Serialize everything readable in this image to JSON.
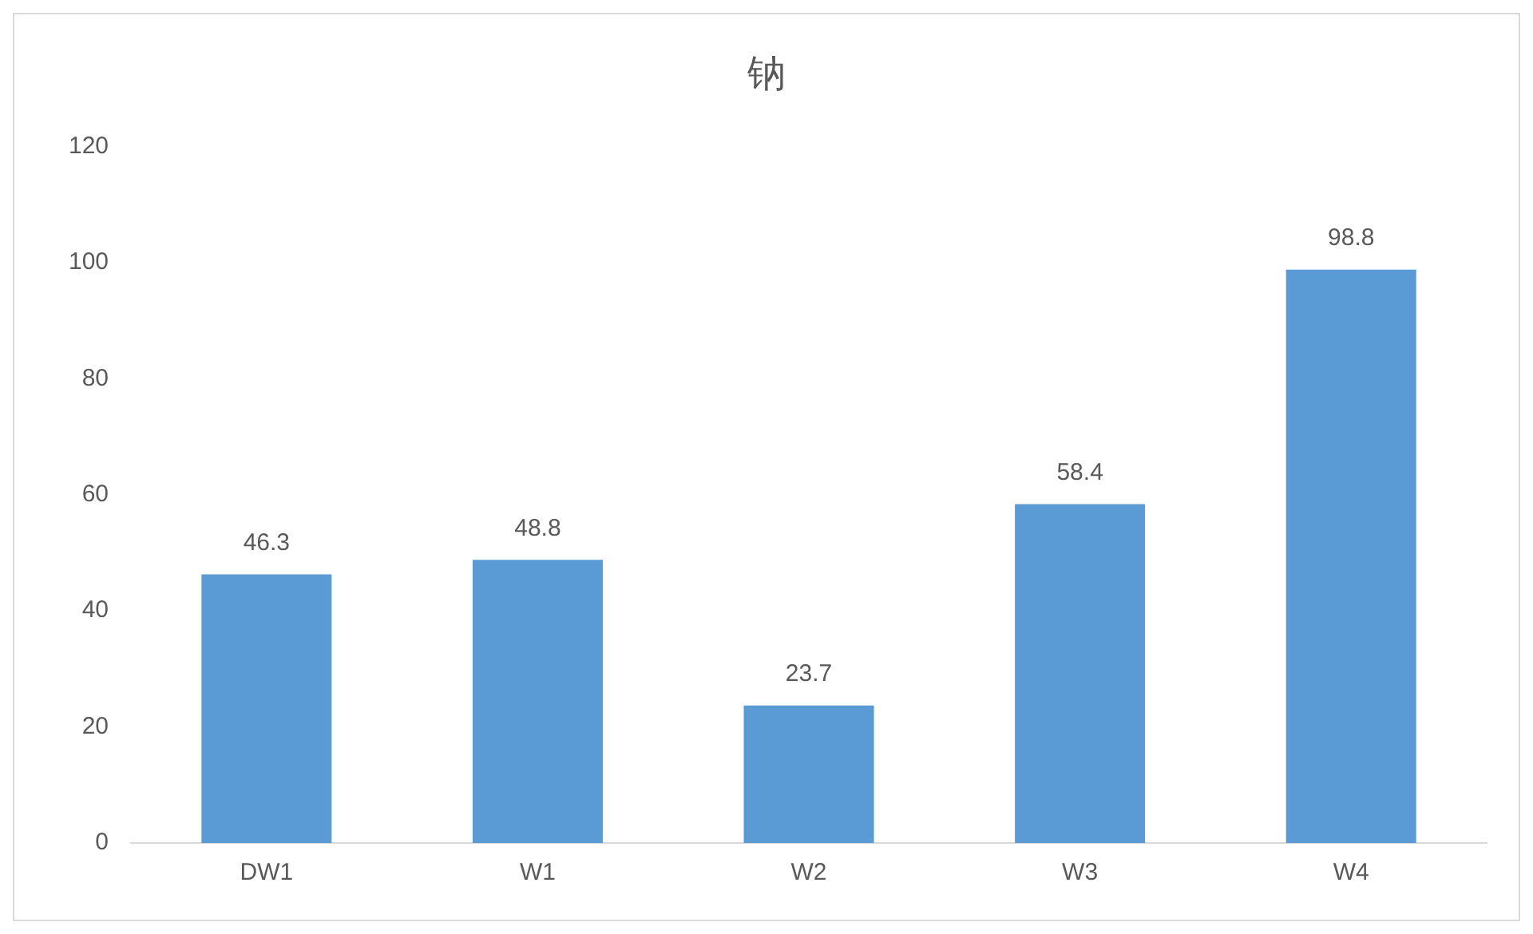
{
  "chart_data": {
    "type": "bar",
    "title": "钠",
    "categories": [
      "DW1",
      "W1",
      "W2",
      "W3",
      "W4"
    ],
    "values": [
      46.3,
      48.8,
      23.7,
      58.4,
      98.8
    ],
    "color": "#5b9bd5",
    "ylim": [
      0,
      120
    ],
    "yticks": [
      0,
      20,
      40,
      60,
      80,
      100,
      120
    ],
    "grid": false,
    "legend": false,
    "data_labels": true
  }
}
